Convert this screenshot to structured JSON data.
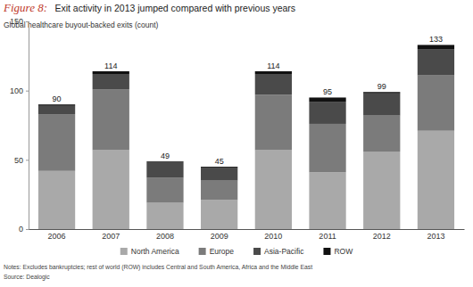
{
  "chart_data": {
    "type": "bar",
    "stacked": true,
    "figure_label": "Figure 8:",
    "title": "Exit activity in 2013 jumped compared with previous years",
    "y_label": "Global healthcare buyout-backed exits (count)",
    "categories": [
      "2006",
      "2007",
      "2008",
      "2009",
      "2010",
      "2011",
      "2012",
      "2013"
    ],
    "series": [
      {
        "name": "North America",
        "color": "#a9a9a9",
        "values": [
          42,
          57,
          19,
          21,
          57,
          41,
          56,
          71
        ]
      },
      {
        "name": "Europe",
        "color": "#7b7b7b",
        "values": [
          41,
          44,
          18,
          14,
          40,
          35,
          26,
          40
        ]
      },
      {
        "name": "Asia-Pacific",
        "color": "#4a4a4a",
        "values": [
          6,
          11,
          12,
          9,
          15,
          16,
          16,
          19
        ]
      },
      {
        "name": "ROW",
        "color": "#111111",
        "values": [
          1,
          2,
          0,
          1,
          2,
          3,
          1,
          3
        ]
      }
    ],
    "totals": [
      90,
      114,
      49,
      45,
      114,
      95,
      99,
      133
    ],
    "ylim": [
      0,
      150
    ],
    "yticks": [
      0,
      50,
      100,
      150
    ],
    "grid": false,
    "legend": "bottom",
    "notes": "Notes: Excludes bankruptcies; rest of world (ROW) includes Central and South America, Africa and the Middle East",
    "source": "Source: Dealogic"
  }
}
